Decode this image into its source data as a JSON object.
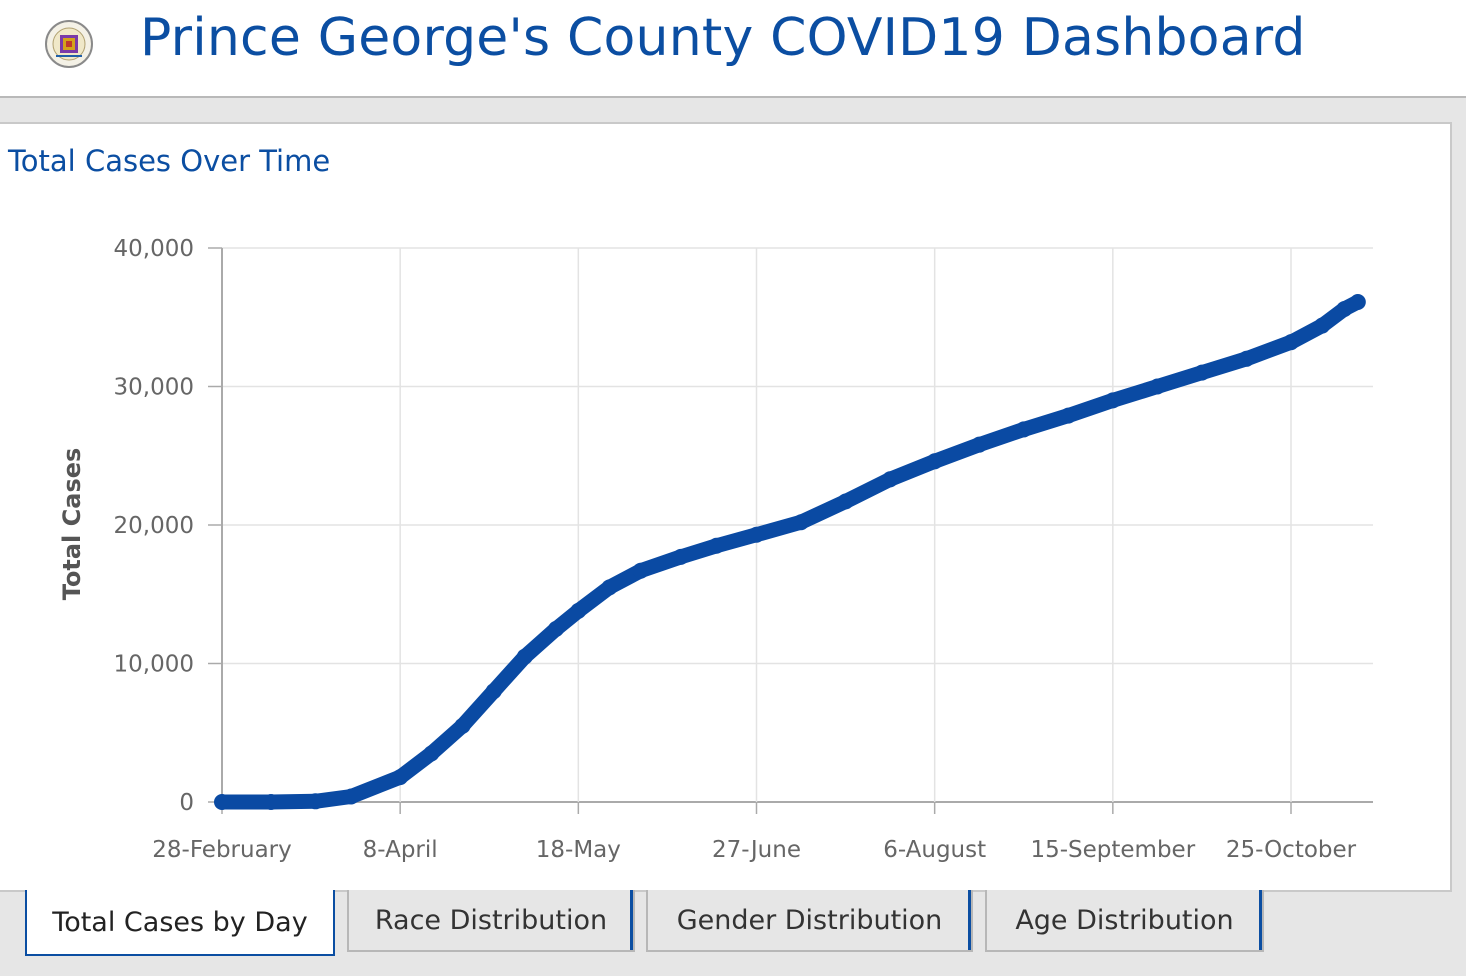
{
  "header": {
    "title": "Prince George's County COVID19 Dashboard"
  },
  "panel": {
    "title": "Total Cases Over Time"
  },
  "tabs": [
    {
      "label": "Total Cases by Day",
      "active": true
    },
    {
      "label": "Race Distribution",
      "active": false
    },
    {
      "label": "Gender Distribution",
      "active": false
    },
    {
      "label": "Age Distribution",
      "active": false
    }
  ],
  "colors": {
    "brand": "#0b4ea2",
    "line": "#0a4aa3",
    "grid": "#e3e3e3",
    "background": "#e6e6e6"
  },
  "icons": {
    "logo": "county-seal-icon"
  },
  "chart_data": {
    "type": "line",
    "title": "",
    "xlabel": "",
    "ylabel": "Total Cases",
    "ylim": [
      0,
      40000
    ],
    "yticks": [
      "0",
      "10,000",
      "20,000",
      "30,000",
      "40,000"
    ],
    "xticks": [
      "28-February",
      "8-April",
      "18-May",
      "27-June",
      "6-August",
      "15-September",
      "25-October"
    ],
    "grid": true,
    "series": [
      {
        "values": [
          {
            "x": "2020-02-28",
            "y": 0
          },
          {
            "x": "2020-03-10",
            "y": 0
          },
          {
            "x": "2020-03-20",
            "y": 50
          },
          {
            "x": "2020-03-28",
            "y": 400
          },
          {
            "x": "2020-04-08",
            "y": 1800
          },
          {
            "x": "2020-04-15",
            "y": 3500
          },
          {
            "x": "2020-04-22",
            "y": 5500
          },
          {
            "x": "2020-04-29",
            "y": 8000
          },
          {
            "x": "2020-05-06",
            "y": 10500
          },
          {
            "x": "2020-05-13",
            "y": 12500
          },
          {
            "x": "2020-05-18",
            "y": 13800
          },
          {
            "x": "2020-05-25",
            "y": 15500
          },
          {
            "x": "2020-06-01",
            "y": 16700
          },
          {
            "x": "2020-06-10",
            "y": 17700
          },
          {
            "x": "2020-06-18",
            "y": 18500
          },
          {
            "x": "2020-06-27",
            "y": 19300
          },
          {
            "x": "2020-07-07",
            "y": 20200
          },
          {
            "x": "2020-07-17",
            "y": 21700
          },
          {
            "x": "2020-07-27",
            "y": 23300
          },
          {
            "x": "2020-08-06",
            "y": 24600
          },
          {
            "x": "2020-08-16",
            "y": 25800
          },
          {
            "x": "2020-08-26",
            "y": 26900
          },
          {
            "x": "2020-09-05",
            "y": 27900
          },
          {
            "x": "2020-09-15",
            "y": 29000
          },
          {
            "x": "2020-09-25",
            "y": 30000
          },
          {
            "x": "2020-10-05",
            "y": 31000
          },
          {
            "x": "2020-10-15",
            "y": 32000
          },
          {
            "x": "2020-10-25",
            "y": 33200
          },
          {
            "x": "2020-11-01",
            "y": 34400
          },
          {
            "x": "2020-11-06",
            "y": 35600
          },
          {
            "x": "2020-11-09",
            "y": 36100
          }
        ]
      }
    ]
  }
}
